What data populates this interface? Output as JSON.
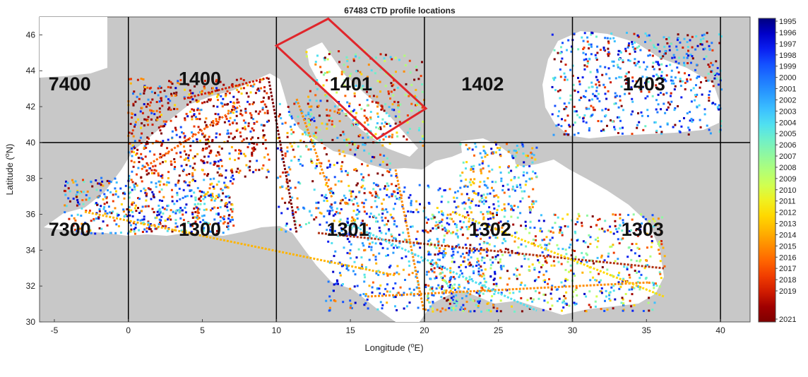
{
  "title": "67483 CTD profile locations",
  "axes": {
    "xlabel_prefix": "Longitude (",
    "xlabel_sup": "o",
    "xlabel_suffix": "E)",
    "ylabel_prefix": "Latitude (",
    "ylabel_sup": "o",
    "ylabel_suffix": "N)",
    "x_range": [
      -6,
      42
    ],
    "y_range": [
      30,
      47
    ],
    "x_ticks": [
      -5,
      0,
      5,
      10,
      15,
      20,
      25,
      30,
      35,
      40
    ],
    "y_ticks": [
      30,
      32,
      34,
      36,
      38,
      40,
      42,
      44,
      46
    ]
  },
  "grid_lines": {
    "lon": [
      0,
      10,
      20,
      30,
      40
    ],
    "lat": [
      40
    ]
  },
  "regions": [
    {
      "label": "7400",
      "lon": -5.4,
      "lat": 42.9
    },
    {
      "label": "1400",
      "lon": 3.4,
      "lat": 43.2
    },
    {
      "label": "1401",
      "lon": 13.6,
      "lat": 42.9
    },
    {
      "label": "1402",
      "lon": 22.5,
      "lat": 42.9
    },
    {
      "label": "1403",
      "lon": 33.4,
      "lat": 42.9
    },
    {
      "label": "7300",
      "lon": -5.4,
      "lat": 34.8
    },
    {
      "label": "1300",
      "lon": 3.4,
      "lat": 34.8
    },
    {
      "label": "1301",
      "lon": 13.4,
      "lat": 34.8
    },
    {
      "label": "1302",
      "lon": 23.0,
      "lat": 34.8
    },
    {
      "label": "1303",
      "lon": 33.3,
      "lat": 34.8
    }
  ],
  "highlight_box": {
    "color": "#e0262b",
    "corners": [
      [
        10.0,
        45.4
      ],
      [
        13.5,
        46.9
      ],
      [
        20.1,
        41.9
      ],
      [
        16.8,
        40.2
      ]
    ]
  },
  "colorbar": {
    "labels": [
      "1995",
      "1996",
      "1997",
      "1998",
      "1999",
      "2000",
      "2001",
      "2002",
      "2003",
      "2004",
      "2005",
      "2006",
      "2007",
      "2008",
      "2009",
      "2010",
      "2011",
      "2012",
      "2013",
      "2014",
      "2015",
      "2016",
      "2017",
      "2018",
      "2019",
      "2021"
    ],
    "colors": [
      "#00007f",
      "#0000c8",
      "#0a1ef0",
      "#1450ff",
      "#1e78ff",
      "#2a9cff",
      "#3cc0ff",
      "#50e0f0",
      "#70f0c8",
      "#90f8a0",
      "#b0ff78",
      "#d0ff50",
      "#f0f020",
      "#ffd800",
      "#ffb400",
      "#ff8c00",
      "#ff6400",
      "#f03c00",
      "#d01c00",
      "#a00000",
      "#7f0000"
    ]
  }
}
